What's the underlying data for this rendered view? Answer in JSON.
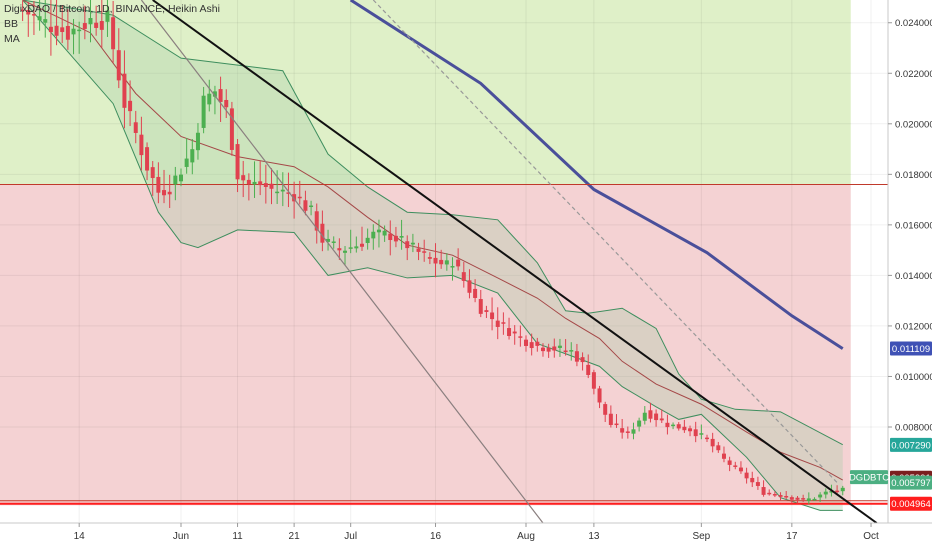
{
  "header": {
    "title": "DigixDAO / Bitcoin, 1D, BINANCE, Heikin Ashi",
    "indicators": [
      "BB",
      "MA"
    ]
  },
  "price_badges": [
    {
      "label": "0.011109",
      "value": 0.011109,
      "color": "#3f51b5"
    },
    {
      "label": "0.007290",
      "value": 0.00729,
      "color": "#26a69a"
    },
    {
      "label": "0.005991",
      "value": 0.005991,
      "color": "#7b1f1f"
    },
    {
      "label": "0.005797",
      "value": 0.005797,
      "color": "#4caf82"
    },
    {
      "label": "0.004964",
      "value": 0.004964,
      "color": "#ff1e1e"
    }
  ],
  "symbol_tag": "DGDBTC",
  "chart_data": {
    "type": "candlestick",
    "style": "Heikin Ashi",
    "x_ticks": [
      {
        "label": "14",
        "day": 14
      },
      {
        "label": "Jun",
        "day": 32
      },
      {
        "label": "11",
        "day": 42
      },
      {
        "label": "21",
        "day": 52
      },
      {
        "label": "Jul",
        "day": 62
      },
      {
        "label": "16",
        "day": 77
      },
      {
        "label": "Aug",
        "day": 93
      },
      {
        "label": "13",
        "day": 105
      },
      {
        "label": "Sep",
        "day": 124
      },
      {
        "label": "17",
        "day": 140
      },
      {
        "label": "Oct",
        "day": 154
      }
    ],
    "y_ticks": [
      "0.024000",
      "0.022000",
      "0.020000",
      "0.018000",
      "0.016000",
      "0.014000",
      "0.012000",
      "0.010000",
      "0.008000"
    ],
    "ylim": [
      0.0042,
      0.0249
    ],
    "xlim": [
      0,
      157
    ],
    "grid": true,
    "zones": [
      {
        "name": "green",
        "from": 0.0176,
        "to": 0.0249,
        "color": "#dff0c8"
      },
      {
        "name": "red",
        "from": 0.0049,
        "to": 0.0176,
        "color": "#f4d2d3"
      }
    ],
    "horizontal_lines": [
      {
        "value": 0.0176,
        "color": "#c0392b"
      },
      {
        "value": 0.00508,
        "color": "#c0392b"
      },
      {
        "value": 0.00496,
        "color": "#ff1e1e"
      }
    ],
    "trend_lines": [
      {
        "name": "black-trendline",
        "points": [
          [
            27,
            0.0249
          ],
          [
            155,
            0.0042
          ]
        ],
        "color": "#111111"
      },
      {
        "name": "grey-trendline",
        "points": [
          [
            25,
            0.0249
          ],
          [
            96,
            0.0042
          ]
        ],
        "color": "#8a7f7f"
      },
      {
        "name": "dashed-trendline",
        "points": [
          [
            66,
            0.0249
          ],
          [
            148,
            0.0058
          ]
        ],
        "color": "#999999",
        "dashed": true
      }
    ],
    "ma_long": {
      "color": "#4a4f9a",
      "points": [
        [
          62,
          0.0249
        ],
        [
          85,
          0.0216
        ],
        [
          105,
          0.0174
        ],
        [
          125,
          0.0149
        ],
        [
          140,
          0.0124
        ],
        [
          149,
          0.0111
        ]
      ]
    },
    "bollinger": {
      "fill": "rgba(170,205,170,0.35)",
      "upper": {
        "color": "#3e8e5e",
        "points": [
          [
            4,
            0.0249
          ],
          [
            20,
            0.0243
          ],
          [
            32,
            0.0226
          ],
          [
            50,
            0.0221
          ],
          [
            58,
            0.0188
          ],
          [
            65,
            0.0175
          ],
          [
            72,
            0.0165
          ],
          [
            80,
            0.0164
          ],
          [
            88,
            0.0162
          ],
          [
            95,
            0.0145
          ],
          [
            100,
            0.0126
          ],
          [
            104,
            0.0125
          ],
          [
            110,
            0.0127
          ],
          [
            116,
            0.0119
          ],
          [
            120,
            0.0101
          ],
          [
            124,
            0.0091
          ],
          [
            130,
            0.0087
          ],
          [
            138,
            0.0086
          ],
          [
            149,
            0.0073
          ]
        ]
      },
      "lower": {
        "color": "#3e8e5e",
        "points": [
          [
            4,
            0.0249
          ],
          [
            20,
            0.0208
          ],
          [
            28,
            0.0165
          ],
          [
            32,
            0.0153
          ],
          [
            35,
            0.0151
          ],
          [
            42,
            0.0158
          ],
          [
            52,
            0.0157
          ],
          [
            58,
            0.014
          ],
          [
            65,
            0.0143
          ],
          [
            72,
            0.0139
          ],
          [
            80,
            0.014
          ],
          [
            88,
            0.0133
          ],
          [
            95,
            0.0113
          ],
          [
            100,
            0.0109
          ],
          [
            106,
            0.0104
          ],
          [
            110,
            0.0096
          ],
          [
            116,
            0.0088
          ],
          [
            120,
            0.0083
          ],
          [
            124,
            0.0085
          ],
          [
            132,
            0.0068
          ],
          [
            138,
            0.0052
          ],
          [
            145,
            0.0047
          ],
          [
            149,
            0.0047
          ]
        ]
      },
      "basis": {
        "color": "#a54848",
        "points": [
          [
            4,
            0.0249
          ],
          [
            16,
            0.0236
          ],
          [
            24,
            0.0212
          ],
          [
            32,
            0.0195
          ],
          [
            42,
            0.0187
          ],
          [
            52,
            0.0183
          ],
          [
            58,
            0.0175
          ],
          [
            65,
            0.0163
          ],
          [
            72,
            0.0152
          ],
          [
            80,
            0.0148
          ],
          [
            88,
            0.0139
          ],
          [
            95,
            0.0131
          ],
          [
            100,
            0.0123
          ],
          [
            106,
            0.0115
          ],
          [
            110,
            0.0106
          ],
          [
            116,
            0.0097
          ],
          [
            124,
            0.0089
          ],
          [
            132,
            0.0078
          ],
          [
            138,
            0.007
          ],
          [
            145,
            0.0064
          ],
          [
            149,
            0.0059
          ]
        ]
      }
    },
    "series": [
      {
        "name": "candles",
        "up_color": "#4caf50",
        "down_color": "#e0414f",
        "anchors": [
          [
            4,
            0.0245
          ],
          [
            8,
            0.024
          ],
          [
            12,
            0.0236
          ],
          [
            16,
            0.0241
          ],
          [
            19,
            0.0241
          ],
          [
            22,
            0.0208
          ],
          [
            24,
            0.0196
          ],
          [
            26,
            0.0183
          ],
          [
            28,
            0.0173
          ],
          [
            30,
            0.0175
          ],
          [
            32,
            0.0182
          ],
          [
            34,
            0.019
          ],
          [
            36,
            0.0209
          ],
          [
            38,
            0.0213
          ],
          [
            40,
            0.0205
          ],
          [
            42,
            0.018
          ],
          [
            44,
            0.0176
          ],
          [
            46,
            0.0176
          ],
          [
            48,
            0.0174
          ],
          [
            52,
            0.0172
          ],
          [
            55,
            0.0165
          ],
          [
            57,
            0.0154
          ],
          [
            60,
            0.015
          ],
          [
            63,
            0.0152
          ],
          [
            66,
            0.0156
          ],
          [
            69,
            0.0156
          ],
          [
            72,
            0.0152
          ],
          [
            76,
            0.0146
          ],
          [
            79,
            0.0144
          ],
          [
            80,
            0.0146
          ],
          [
            82,
            0.0138
          ],
          [
            85,
            0.0127
          ],
          [
            88,
            0.0121
          ],
          [
            92,
            0.0115
          ],
          [
            95,
            0.0112
          ],
          [
            98,
            0.0111
          ],
          [
            101,
            0.011
          ],
          [
            104,
            0.0102
          ],
          [
            106,
            0.0089
          ],
          [
            108,
            0.0081
          ],
          [
            111,
            0.0077
          ],
          [
            114,
            0.0086
          ],
          [
            118,
            0.0081
          ],
          [
            122,
            0.0079
          ],
          [
            125,
            0.0075
          ],
          [
            128,
            0.0067
          ],
          [
            132,
            0.006
          ],
          [
            135,
            0.0054
          ],
          [
            138,
            0.0053
          ],
          [
            140,
            0.0052
          ],
          [
            142,
            0.0051
          ],
          [
            144,
            0.0052
          ],
          [
            146,
            0.0054
          ],
          [
            148,
            0.0055
          ],
          [
            149,
            0.0055
          ]
        ]
      }
    ]
  }
}
